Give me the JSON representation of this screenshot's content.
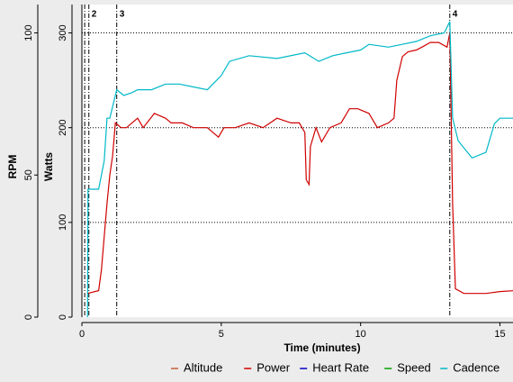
{
  "chart_data": {
    "type": "line",
    "xlabel": "Time (minutes)",
    "ylabel": "Watts",
    "y2label": "RPM",
    "xlim": [
      0,
      15.5
    ],
    "xticks": [
      0,
      5,
      10,
      15
    ],
    "ylim": [
      0,
      330
    ],
    "yticks": [
      0,
      100,
      200,
      300
    ],
    "y2lim": [
      0,
      110
    ],
    "y2ticks": [
      0,
      50,
      100
    ],
    "grid": true,
    "legend": "bottom",
    "markers": [
      {
        "x": 0.1
      },
      {
        "x": 0.25,
        "label": "2"
      },
      {
        "x": 1.25,
        "label": "3"
      },
      {
        "x": 13.2,
        "label": "4"
      }
    ],
    "series": [
      {
        "name": "Altitude",
        "color": "#c0603a",
        "x": [],
        "values": []
      },
      {
        "name": "Power",
        "color": "#d00000",
        "x": [
          0.2,
          0.6,
          0.7,
          0.9,
          1.0,
          1.1,
          1.2,
          1.4,
          1.6,
          1.8,
          2.0,
          2.2,
          2.6,
          3.0,
          3.2,
          3.6,
          4.0,
          4.5,
          4.9,
          5.1,
          5.5,
          6.0,
          6.5,
          7.0,
          7.5,
          7.8,
          8.0,
          8.05,
          8.15,
          8.2,
          8.4,
          8.6,
          8.9,
          9.3,
          9.6,
          9.9,
          10.3,
          10.6,
          11.0,
          11.2,
          11.3,
          11.5,
          11.7,
          12.0,
          12.2,
          12.5,
          12.8,
          13.1,
          13.2,
          13.3,
          13.4,
          13.7,
          14.0,
          14.5,
          15.0,
          15.5
        ],
        "values": [
          25,
          28,
          50,
          120,
          150,
          170,
          205,
          200,
          200,
          205,
          210,
          200,
          215,
          210,
          205,
          205,
          200,
          200,
          190,
          200,
          200,
          205,
          200,
          210,
          205,
          205,
          195,
          145,
          140,
          180,
          200,
          185,
          200,
          205,
          220,
          220,
          215,
          200,
          205,
          210,
          250,
          275,
          280,
          282,
          285,
          290,
          290,
          285,
          300,
          120,
          30,
          25,
          25,
          25,
          27,
          28
        ]
      },
      {
        "name": "Heart Rate",
        "color": "#0000c0",
        "x": [],
        "values": []
      },
      {
        "name": "Speed",
        "color": "#00a000",
        "x": [],
        "values": []
      },
      {
        "name": "Cadence",
        "color": "#00b8c8",
        "axis": "y2",
        "x": [
          0.2,
          0.22,
          0.6,
          0.8,
          0.9,
          1.0,
          1.25,
          1.5,
          1.8,
          2.0,
          2.5,
          3.0,
          3.5,
          4.0,
          4.5,
          5.0,
          5.3,
          6.0,
          7.0,
          8.0,
          8.5,
          9.0,
          9.5,
          10.0,
          10.3,
          11.0,
          11.5,
          12.0,
          12.5,
          13.0,
          13.2,
          13.3,
          13.5,
          14.0,
          14.5,
          14.8,
          15.0,
          15.5
        ],
        "values": [
          0,
          45,
          45,
          55,
          70,
          70,
          80,
          78,
          79,
          80,
          80,
          82,
          82,
          81,
          80,
          85,
          90,
          92,
          91,
          93,
          90,
          92,
          93,
          94,
          96,
          95,
          96,
          97,
          99,
          100,
          104,
          70,
          62,
          56,
          58,
          68,
          70,
          70
        ]
      }
    ]
  }
}
